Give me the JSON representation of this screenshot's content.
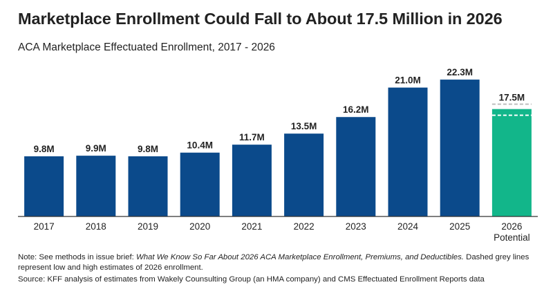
{
  "title": "Marketplace Enrollment Could Fall to About 17.5 Million in 2026",
  "subtitle": "ACA Marketplace Effectuated Enrollment, 2017 - 2026",
  "notes": {
    "note_prefix": "Note: See methods in issue brief: ",
    "note_brief": "What We Know So Far About 2026 ACA Marketplace Enrollment, Premiums, and Deductibles.",
    "note_suffix": " Dashed grey lines represent low and high estimates of 2026 enrollment.",
    "source": "Source: KFF analysis of estimates from Wakely Counsulting Group (an HMA company) and CMS Effectuated Enrollment Reports data"
  },
  "colors": {
    "actual_bar": "#0b4a8b",
    "potential_bar": "#12b68a",
    "dashed_estimate": "#bdbdbd",
    "baseline": "#333333"
  },
  "chart_data": {
    "type": "bar",
    "categories": [
      "2017",
      "2018",
      "2019",
      "2020",
      "2021",
      "2022",
      "2023",
      "2024",
      "2025",
      "2026\nPotential"
    ],
    "values": [
      9.8,
      9.9,
      9.8,
      10.4,
      11.7,
      13.5,
      16.2,
      21.0,
      22.3,
      17.5
    ],
    "value_labels": [
      "9.8M",
      "9.9M",
      "9.8M",
      "10.4M",
      "11.7M",
      "13.5M",
      "16.2M",
      "21.0M",
      "22.3M",
      "17.5M"
    ],
    "highlight_category": "2026\nPotential",
    "estimate_range_2026": {
      "low": 16.5,
      "high": 18.3
    },
    "unit": "Million",
    "ylim": [
      0,
      24
    ],
    "grid": false,
    "legend": "none"
  }
}
